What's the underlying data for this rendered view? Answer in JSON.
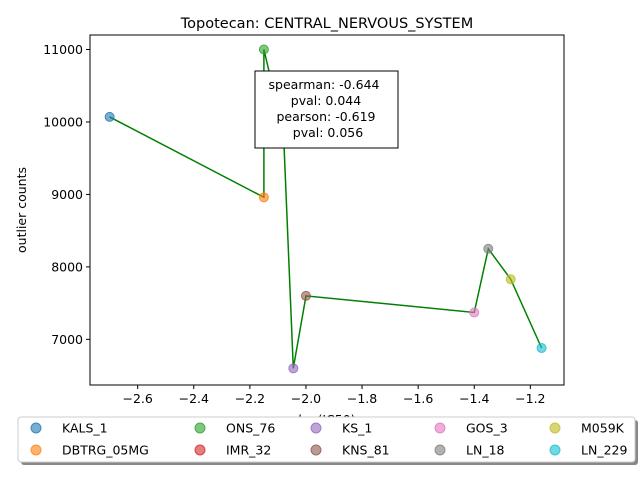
{
  "chart_data": {
    "type": "scatter",
    "title": "Topotecan: CENTRAL_NERVOUS_SYSTEM",
    "xlabel": "log(IC50)",
    "ylabel": "outlier counts",
    "xlim": [
      -2.77,
      -1.08
    ],
    "ylim": [
      6370,
      11200
    ],
    "xticks": [
      -2.6,
      -2.4,
      -2.2,
      -2.0,
      -1.8,
      -1.6,
      -1.4,
      -1.2
    ],
    "xtick_labels": [
      "−2.6",
      "−2.4",
      "−2.2",
      "−2.0",
      "−1.8",
      "−1.6",
      "−1.4",
      "−1.2"
    ],
    "yticks": [
      7000,
      8000,
      9000,
      10000,
      11000
    ],
    "ytick_labels": [
      "7000",
      "8000",
      "9000",
      "10000",
      "11000"
    ],
    "grid": false,
    "line_color": "#008000",
    "series": [
      {
        "name": "KALS_1",
        "x": -2.7,
        "y": 10070,
        "color": "#1f77b4"
      },
      {
        "name": "DBTRG_05MG",
        "x": -2.15,
        "y": 8960,
        "color": "#ff7f0e"
      },
      {
        "name": "ONS_76",
        "x": -2.15,
        "y": 11000,
        "color": "#2ca02c"
      },
      {
        "name": "IMR_32",
        "x": -2.08,
        "y": 9850,
        "color": "#d62728"
      },
      {
        "name": "KS_1",
        "x": -2.045,
        "y": 6600,
        "color": "#9467bd"
      },
      {
        "name": "KNS_81",
        "x": -2.0,
        "y": 7600,
        "color": "#8c564b"
      },
      {
        "name": "GOS_3",
        "x": -1.4,
        "y": 7370,
        "color": "#e377c2"
      },
      {
        "name": "LN_18",
        "x": -1.35,
        "y": 8250,
        "color": "#7f7f7f"
      },
      {
        "name": "M059K",
        "x": -1.27,
        "y": 7830,
        "color": "#bcbd22"
      },
      {
        "name": "LN_229",
        "x": -1.16,
        "y": 6880,
        "color": "#17becf"
      }
    ],
    "line_order": [
      "KALS_1",
      "DBTRG_05MG",
      "ONS_76",
      "IMR_32",
      "KS_1",
      "KNS_81",
      "GOS_3",
      "LN_18",
      "M059K",
      "LN_229"
    ],
    "annotation": [
      "spearman: -0.644",
      "pval: 0.044",
      "pearson: -0.619",
      "pval: 0.056"
    ],
    "legend_position": "bottom"
  }
}
